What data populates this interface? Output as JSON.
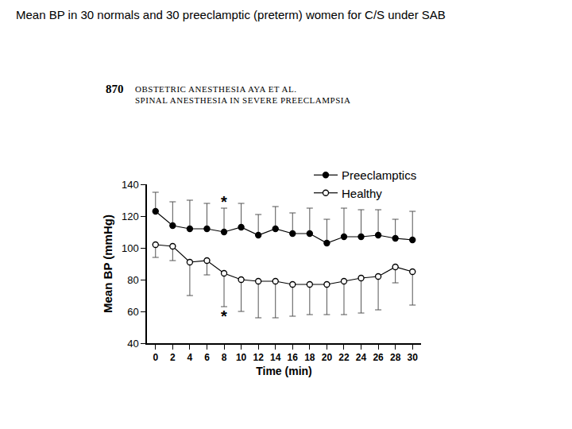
{
  "page": {
    "title": "Mean BP in 30 normals and 30 preeclamptic (preterm) women for C/S under SAB",
    "header_page": "870",
    "header_line1": "OBSTETRIC ANESTHESIA    AYA ET AL.",
    "header_line2": "SPINAL ANESTHESIA IN SEVERE PREECLAMPSIA"
  },
  "chart_data": {
    "type": "line",
    "x_label": "Time (min)",
    "y_label": "Mean BP (mmHg)",
    "x": [
      0,
      2,
      4,
      6,
      8,
      10,
      12,
      14,
      16,
      18,
      20,
      22,
      24,
      26,
      28,
      30
    ],
    "xlim": [
      -1,
      31
    ],
    "xticks": [
      0,
      2,
      4,
      6,
      8,
      10,
      12,
      14,
      16,
      18,
      20,
      22,
      24,
      26,
      28,
      30
    ],
    "ylim": [
      40,
      140
    ],
    "yticks": [
      40,
      60,
      80,
      100,
      120,
      140
    ],
    "grid": false,
    "legend": "top right",
    "series": [
      {
        "name": "Preeclamptics",
        "color": "#000000",
        "marker": "filled",
        "values": [
          123,
          114,
          112,
          112,
          110,
          113,
          108,
          112,
          109,
          109,
          103,
          107,
          107,
          108,
          106,
          105
        ],
        "error_plus": [
          12,
          15,
          18,
          16,
          15,
          15,
          13,
          14,
          13,
          16,
          15,
          18,
          17,
          16,
          12,
          18
        ]
      },
      {
        "name": "Healthy",
        "color": "#000000",
        "marker": "open",
        "values": [
          102,
          101,
          91,
          92,
          84,
          80,
          79,
          79,
          77,
          77,
          77,
          79,
          81,
          82,
          88,
          85
        ],
        "error_minus": [
          8,
          9,
          21,
          9,
          21,
          20,
          23,
          23,
          20,
          19,
          19,
          21,
          22,
          21,
          10,
          21
        ]
      }
    ],
    "annotations": [
      {
        "text": "*",
        "x": 8,
        "y": 129
      },
      {
        "text": "*",
        "x": 8,
        "y": 57
      }
    ]
  }
}
